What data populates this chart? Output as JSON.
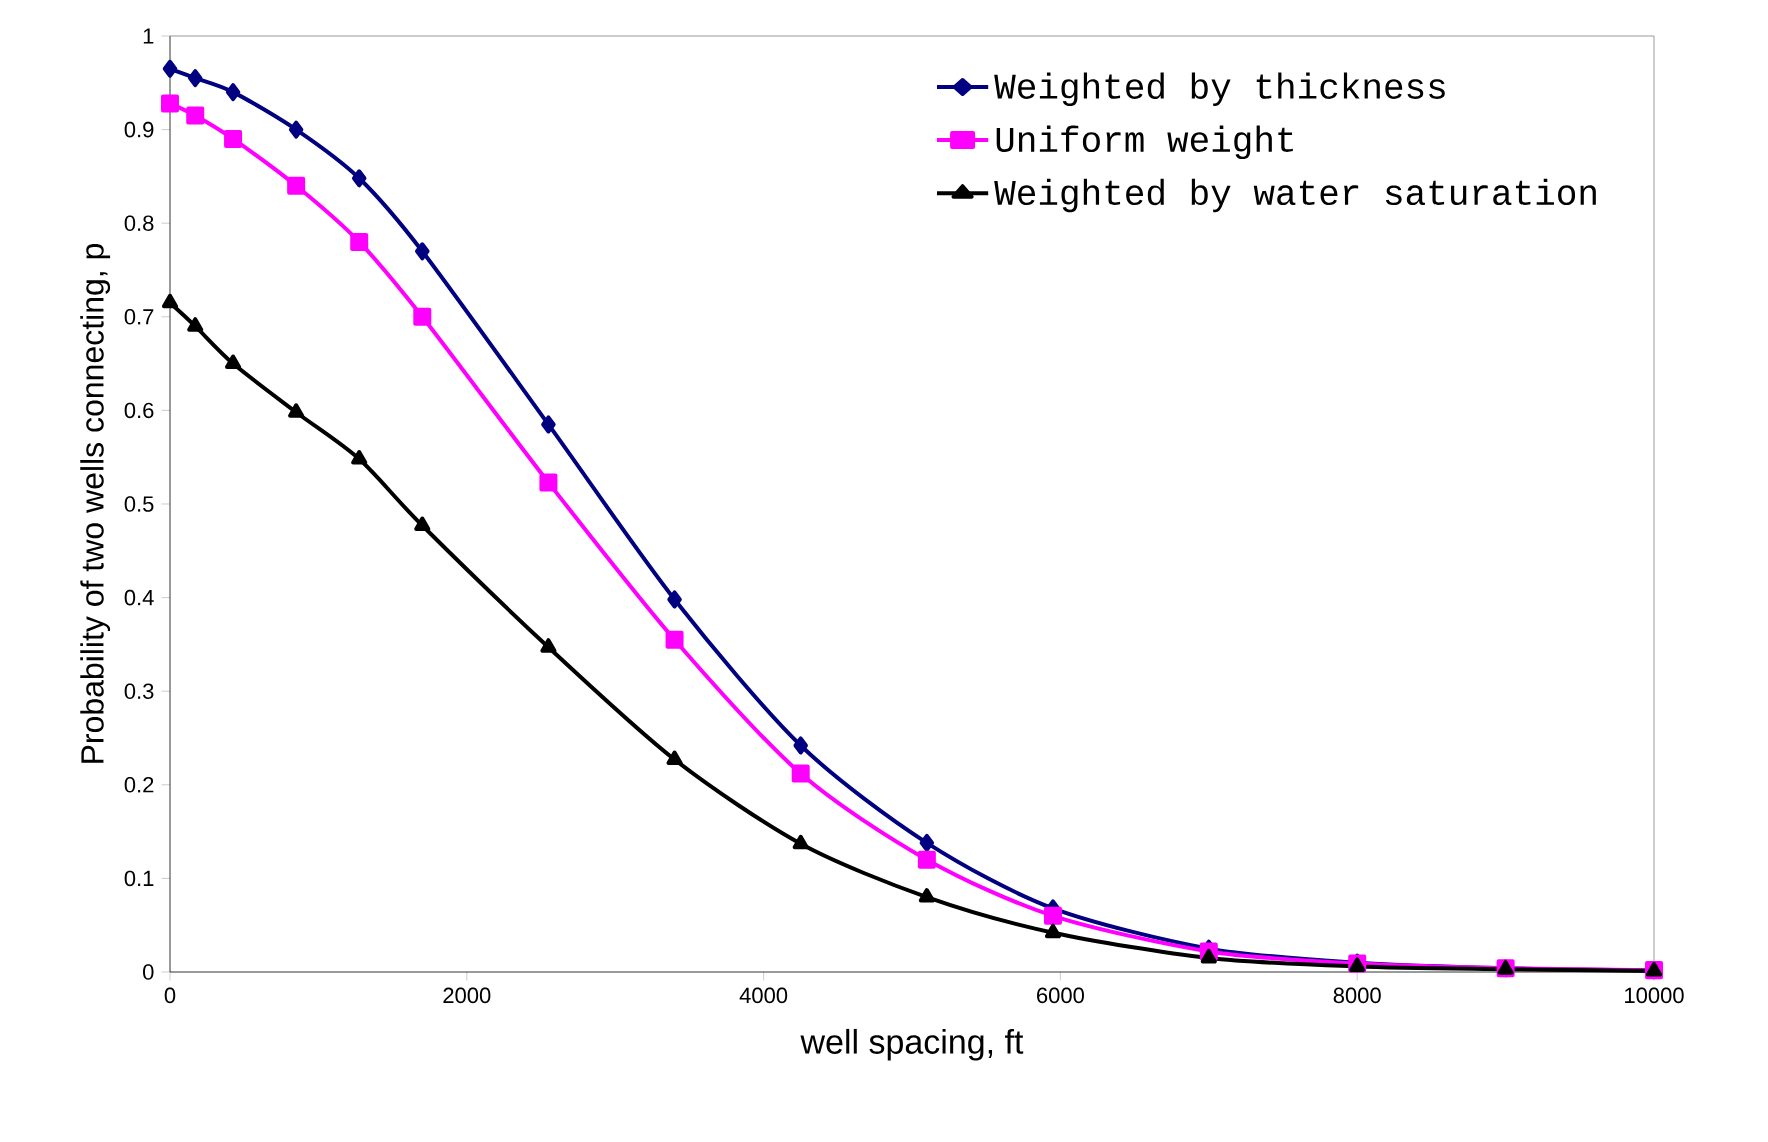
{
  "chart_data": {
    "type": "line",
    "xlabel": "well spacing,  ft",
    "ylabel": "Probability of two wells connecting, p",
    "x": [
      0,
      170,
      425,
      850,
      1275,
      1700,
      2550,
      3400,
      4250,
      5100,
      5950,
      7000,
      8000,
      9000,
      10000
    ],
    "xlim": [
      0,
      10000
    ],
    "xticks": [
      0,
      2000,
      4000,
      6000,
      8000,
      10000
    ],
    "ylim": [
      0,
      1
    ],
    "yticks": [
      0,
      0.1,
      0.2,
      0.3,
      0.4,
      0.5,
      0.6,
      0.7,
      0.8,
      0.9,
      1
    ],
    "grid": false,
    "legend": "top right",
    "series": [
      {
        "name": "Weighted by thickness",
        "color": "#000080",
        "marker": "diamond",
        "values": [
          0.965,
          0.955,
          0.94,
          0.9,
          0.848,
          0.77,
          0.585,
          0.398,
          0.242,
          0.138,
          0.068,
          0.025,
          0.01,
          0.004,
          0.002
        ]
      },
      {
        "name": "Uniform weight",
        "color": "#ff00ff",
        "marker": "square",
        "values": [
          0.928,
          0.915,
          0.89,
          0.84,
          0.78,
          0.7,
          0.523,
          0.355,
          0.212,
          0.12,
          0.06,
          0.022,
          0.009,
          0.004,
          0.002
        ]
      },
      {
        "name": "Weighted by water saturation",
        "color": "#000000",
        "marker": "triangle",
        "values": [
          0.715,
          0.69,
          0.65,
          0.598,
          0.548,
          0.477,
          0.347,
          0.227,
          0.137,
          0.08,
          0.042,
          0.015,
          0.006,
          0.003,
          0.001
        ]
      }
    ]
  }
}
